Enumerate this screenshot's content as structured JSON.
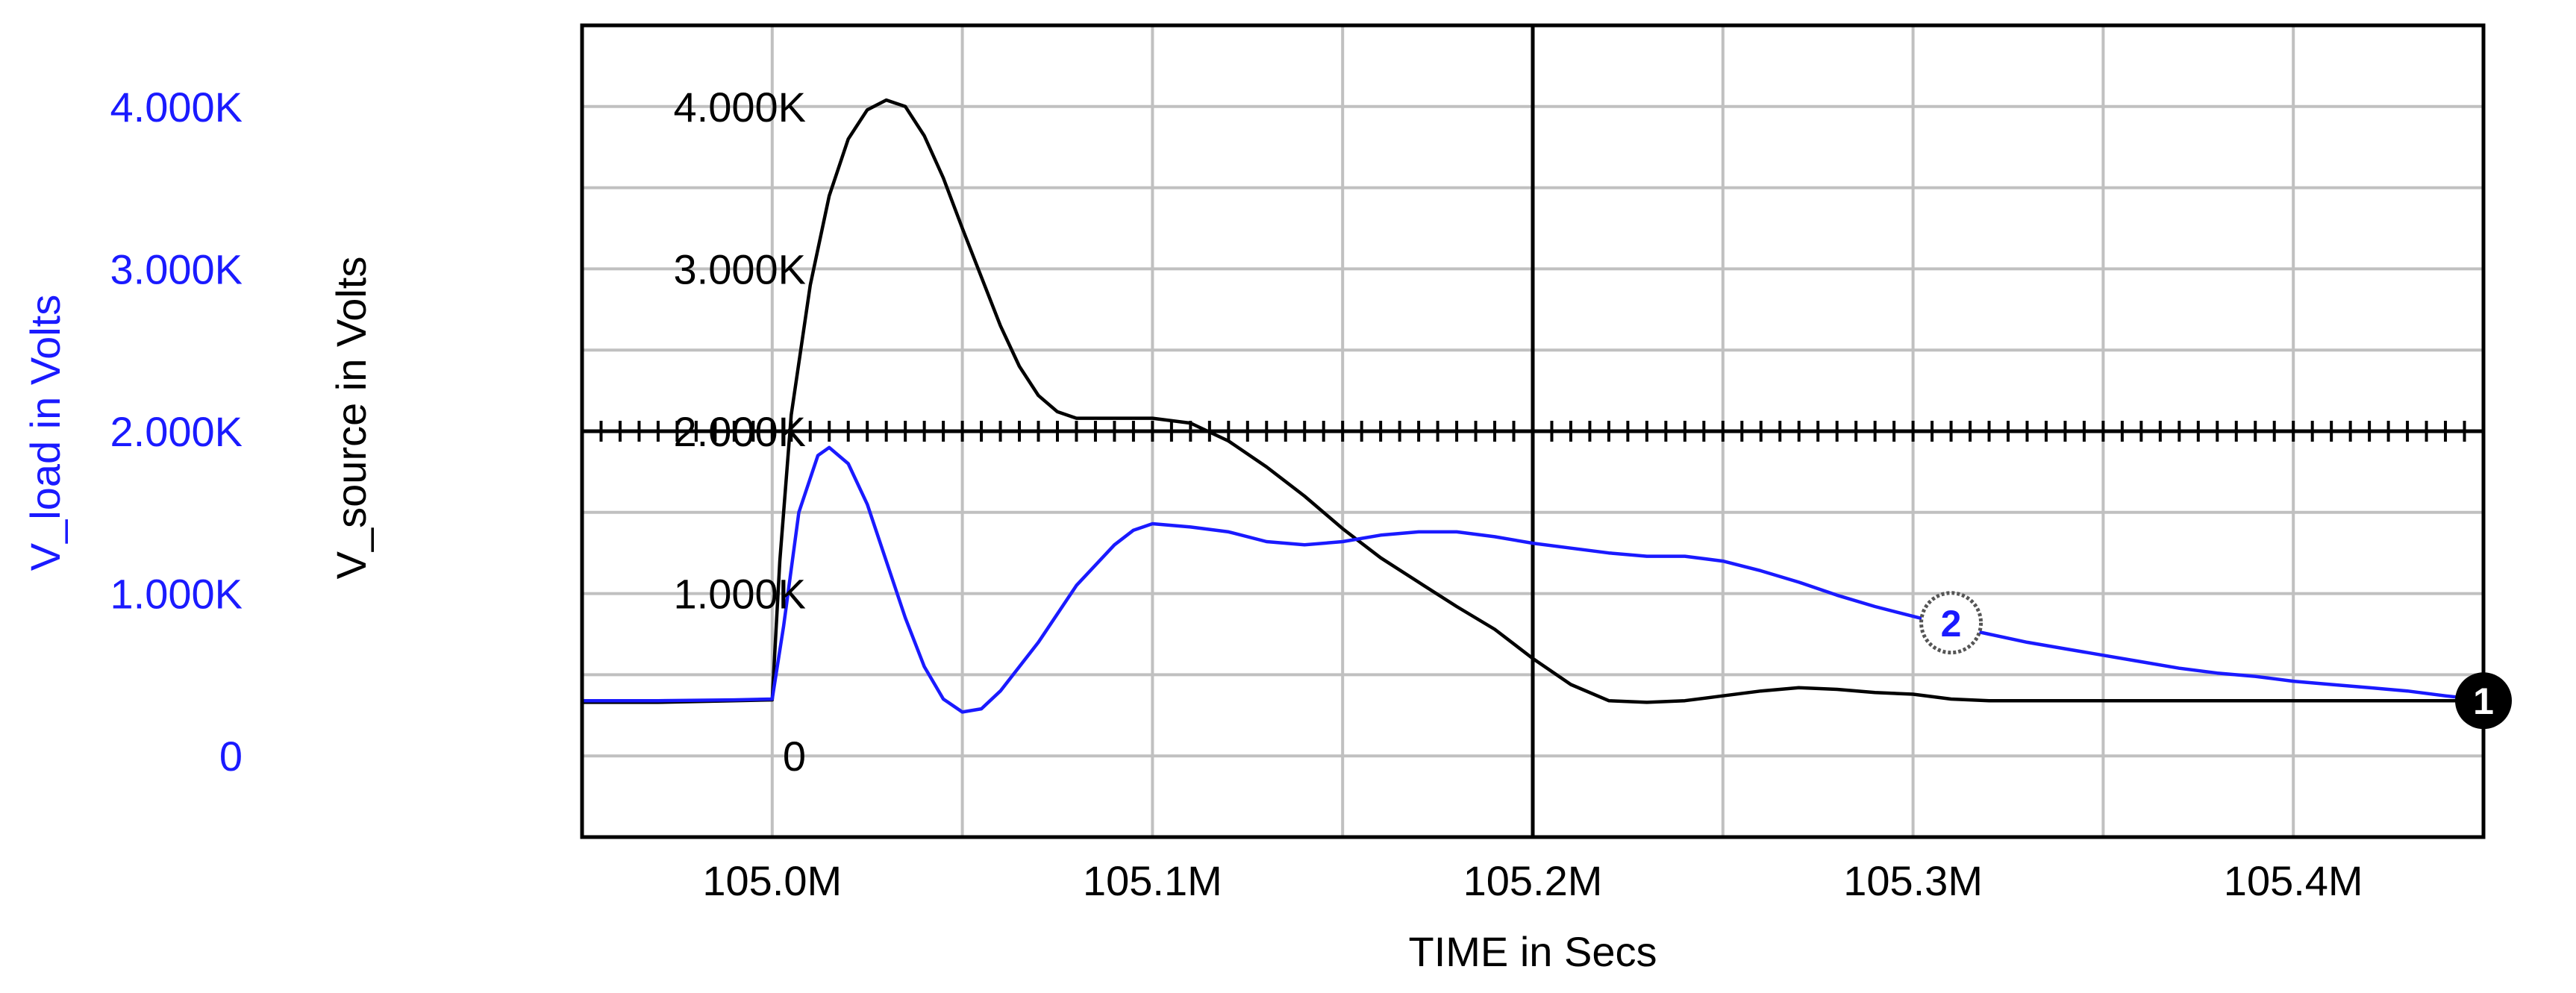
{
  "chart_data": {
    "type": "line",
    "xlabel": "TIME in Secs",
    "x_ticks": [
      "105.0M",
      "105.1M",
      "105.2M",
      "105.3M",
      "105.4M"
    ],
    "x_tick_values": [
      105.0,
      105.1,
      105.2,
      105.3,
      105.4
    ],
    "xlim": [
      104.95,
      105.45
    ],
    "cursor_x": 105.2,
    "grid": true,
    "y_axes": [
      {
        "label": "V_source in Volts",
        "color": "#000000",
        "ticks": [
          "0",
          "1.000K",
          "2.000K",
          "3.000K",
          "4.000K"
        ],
        "tick_values": [
          0,
          1000,
          2000,
          3000,
          4000
        ],
        "ylim": [
          -500,
          4500
        ]
      },
      {
        "label": "V_load in Volts",
        "color": "#1a1aff",
        "ticks": [
          "0",
          "1.000K",
          "2.000K",
          "3.000K",
          "4.000K"
        ],
        "tick_values": [
          0,
          1000,
          2000,
          3000,
          4000
        ],
        "ylim": [
          -500,
          4500
        ]
      }
    ],
    "series": [
      {
        "marker": "1",
        "color": "#000000",
        "axis": 0,
        "points": [
          [
            104.95,
            330
          ],
          [
            104.97,
            330
          ],
          [
            104.99,
            340
          ],
          [
            105.0,
            345
          ],
          [
            105.002,
            1200
          ],
          [
            105.005,
            2100
          ],
          [
            105.01,
            2900
          ],
          [
            105.015,
            3450
          ],
          [
            105.02,
            3800
          ],
          [
            105.025,
            3980
          ],
          [
            105.03,
            4040
          ],
          [
            105.035,
            4000
          ],
          [
            105.04,
            3820
          ],
          [
            105.045,
            3560
          ],
          [
            105.05,
            3250
          ],
          [
            105.055,
            2950
          ],
          [
            105.06,
            2650
          ],
          [
            105.065,
            2400
          ],
          [
            105.07,
            2220
          ],
          [
            105.075,
            2120
          ],
          [
            105.08,
            2080
          ],
          [
            105.09,
            2080
          ],
          [
            105.1,
            2080
          ],
          [
            105.11,
            2050
          ],
          [
            105.12,
            1940
          ],
          [
            105.13,
            1780
          ],
          [
            105.14,
            1600
          ],
          [
            105.15,
            1400
          ],
          [
            105.16,
            1220
          ],
          [
            105.17,
            1070
          ],
          [
            105.18,
            920
          ],
          [
            105.19,
            780
          ],
          [
            105.2,
            600
          ],
          [
            105.21,
            440
          ],
          [
            105.22,
            340
          ],
          [
            105.23,
            330
          ],
          [
            105.24,
            340
          ],
          [
            105.25,
            370
          ],
          [
            105.26,
            400
          ],
          [
            105.27,
            420
          ],
          [
            105.28,
            410
          ],
          [
            105.29,
            390
          ],
          [
            105.3,
            380
          ],
          [
            105.31,
            350
          ],
          [
            105.32,
            340
          ],
          [
            105.35,
            340
          ],
          [
            105.4,
            340
          ],
          [
            105.45,
            340
          ]
        ]
      },
      {
        "marker": "2",
        "color": "#1a1aff",
        "axis": 1,
        "points": [
          [
            104.95,
            340
          ],
          [
            104.97,
            340
          ],
          [
            104.99,
            345
          ],
          [
            105.0,
            350
          ],
          [
            105.003,
            800
          ],
          [
            105.007,
            1500
          ],
          [
            105.012,
            1850
          ],
          [
            105.015,
            1900
          ],
          [
            105.02,
            1800
          ],
          [
            105.025,
            1550
          ],
          [
            105.03,
            1200
          ],
          [
            105.035,
            850
          ],
          [
            105.04,
            550
          ],
          [
            105.045,
            350
          ],
          [
            105.05,
            270
          ],
          [
            105.055,
            290
          ],
          [
            105.06,
            400
          ],
          [
            105.07,
            700
          ],
          [
            105.08,
            1050
          ],
          [
            105.09,
            1300
          ],
          [
            105.095,
            1390
          ],
          [
            105.1,
            1430
          ],
          [
            105.11,
            1410
          ],
          [
            105.12,
            1380
          ],
          [
            105.13,
            1320
          ],
          [
            105.14,
            1300
          ],
          [
            105.15,
            1320
          ],
          [
            105.16,
            1360
          ],
          [
            105.17,
            1380
          ],
          [
            105.18,
            1380
          ],
          [
            105.19,
            1350
          ],
          [
            105.2,
            1310
          ],
          [
            105.21,
            1280
          ],
          [
            105.22,
            1250
          ],
          [
            105.23,
            1230
          ],
          [
            105.24,
            1230
          ],
          [
            105.25,
            1200
          ],
          [
            105.26,
            1140
          ],
          [
            105.27,
            1070
          ],
          [
            105.28,
            990
          ],
          [
            105.29,
            920
          ],
          [
            105.3,
            860
          ],
          [
            105.31,
            800
          ],
          [
            105.32,
            750
          ],
          [
            105.33,
            700
          ],
          [
            105.34,
            660
          ],
          [
            105.35,
            620
          ],
          [
            105.36,
            580
          ],
          [
            105.37,
            540
          ],
          [
            105.38,
            510
          ],
          [
            105.39,
            490
          ],
          [
            105.4,
            460
          ],
          [
            105.41,
            440
          ],
          [
            105.42,
            420
          ],
          [
            105.43,
            400
          ],
          [
            105.44,
            370
          ],
          [
            105.45,
            345
          ]
        ]
      }
    ],
    "markers": [
      {
        "label": "1",
        "x": 105.45,
        "y": 340,
        "style": "filled"
      },
      {
        "label": "2",
        "x": 105.31,
        "y": 820,
        "style": "outline"
      }
    ]
  }
}
